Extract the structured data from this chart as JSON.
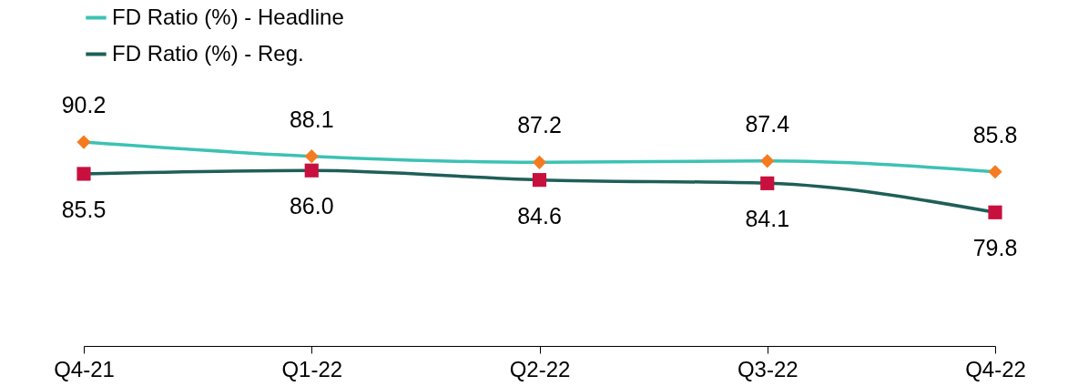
{
  "chart_data": {
    "type": "line",
    "categories": [
      "Q4-21",
      "Q1-22",
      "Q2-22",
      "Q3-22",
      "Q4-22"
    ],
    "series": [
      {
        "name": "FD Ratio (%) - Headline",
        "color": "#3cc2b4",
        "colors": [
          "#f47b20",
          "#f47b20",
          "#f47b20",
          "#f47b20",
          "#f47b20"
        ],
        "marker": "diamond",
        "values": [
          90.2,
          88.1,
          87.2,
          87.4,
          85.8
        ],
        "value_labels": [
          "90.2",
          "88.1",
          "87.2",
          "87.4",
          "85.8"
        ]
      },
      {
        "name": "FD Ratio (%) - Reg.",
        "color": "#1e5f58",
        "colors": [
          "#c8103e",
          "#c8103e",
          "#c8103e",
          "#c8103e",
          "#c8103e"
        ],
        "marker": "square",
        "values": [
          85.5,
          86.0,
          84.6,
          84.1,
          79.8
        ],
        "value_labels": [
          "85.5",
          "86.0",
          "84.6",
          "84.1",
          "79.8"
        ]
      }
    ],
    "tick_labels": "x",
    "legend": "top left",
    "grid": false,
    "line_style": "solid"
  }
}
